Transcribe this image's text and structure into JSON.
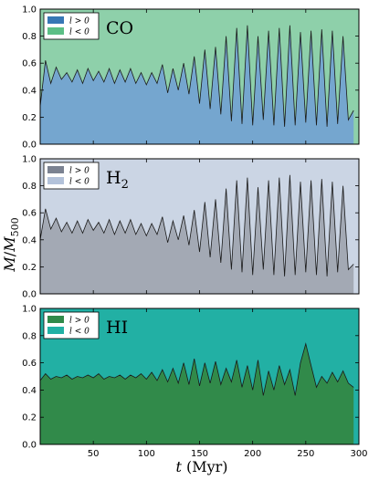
{
  "figure": {
    "xlabel": "t (Myr)",
    "ylabel": "M/M500"
  },
  "chart_data": [
    {
      "type": "area",
      "panel_label": "CO",
      "xlim": [
        0,
        300
      ],
      "ylim": [
        0,
        1.0
      ],
      "xticks": [
        50,
        100,
        150,
        200,
        250,
        300
      ],
      "yticks": [
        0.0,
        0.2,
        0.4,
        0.6,
        0.8,
        1.0
      ],
      "legend": {
        "position": "top-left",
        "entries": [
          "l > 0",
          "l < 0"
        ]
      },
      "colors": {
        "l > 0": "#75a6cf",
        "l < 0": "#8ed0aa",
        "legend_l > 0": "#3777b5",
        "legend_l < 0": "#5cbf86"
      },
      "series": [
        {
          "name": "l > 0",
          "x": [
            0,
            5,
            10,
            15,
            20,
            25,
            30,
            35,
            40,
            45,
            50,
            55,
            60,
            65,
            70,
            75,
            80,
            85,
            90,
            95,
            100,
            105,
            110,
            115,
            120,
            125,
            130,
            135,
            140,
            145,
            150,
            155,
            160,
            165,
            170,
            175,
            180,
            185,
            190,
            195,
            200,
            205,
            210,
            215,
            220,
            225,
            230,
            235,
            240,
            245,
            250,
            255,
            260,
            265,
            270,
            275,
            280,
            285,
            290,
            295
          ],
          "y": [
            0.28,
            0.62,
            0.45,
            0.57,
            0.48,
            0.53,
            0.46,
            0.55,
            0.45,
            0.56,
            0.47,
            0.54,
            0.46,
            0.56,
            0.45,
            0.55,
            0.46,
            0.56,
            0.45,
            0.53,
            0.44,
            0.53,
            0.45,
            0.59,
            0.38,
            0.56,
            0.4,
            0.6,
            0.37,
            0.65,
            0.3,
            0.7,
            0.26,
            0.72,
            0.22,
            0.8,
            0.17,
            0.86,
            0.15,
            0.88,
            0.14,
            0.8,
            0.18,
            0.84,
            0.14,
            0.86,
            0.13,
            0.88,
            0.14,
            0.83,
            0.16,
            0.84,
            0.14,
            0.85,
            0.13,
            0.84,
            0.15,
            0.8,
            0.18,
            0.25
          ]
        }
      ]
    },
    {
      "type": "area",
      "panel_label": "H2",
      "xlim": [
        0,
        300
      ],
      "ylim": [
        0,
        1.0
      ],
      "xticks": [
        50,
        100,
        150,
        200,
        250,
        300
      ],
      "yticks": [
        0.0,
        0.2,
        0.4,
        0.6,
        0.8,
        1.0
      ],
      "legend": {
        "position": "top-left",
        "entries": [
          "l > 0",
          "l < 0"
        ]
      },
      "colors": {
        "l > 0": "#a3a9b4",
        "l < 0": "#cbd5e4",
        "legend_l > 0": "#7b8291",
        "legend_l < 0": "#b3c2da"
      },
      "series": [
        {
          "name": "l > 0",
          "x": [
            0,
            5,
            10,
            15,
            20,
            25,
            30,
            35,
            40,
            45,
            50,
            55,
            60,
            65,
            70,
            75,
            80,
            85,
            90,
            95,
            100,
            105,
            110,
            115,
            120,
            125,
            130,
            135,
            140,
            145,
            150,
            155,
            160,
            165,
            170,
            175,
            180,
            185,
            190,
            195,
            200,
            205,
            210,
            215,
            220,
            225,
            230,
            235,
            240,
            245,
            250,
            255,
            260,
            265,
            270,
            275,
            280,
            285,
            290,
            295
          ],
          "y": [
            0.4,
            0.63,
            0.48,
            0.56,
            0.46,
            0.53,
            0.45,
            0.54,
            0.45,
            0.55,
            0.47,
            0.53,
            0.45,
            0.55,
            0.44,
            0.54,
            0.45,
            0.55,
            0.44,
            0.52,
            0.43,
            0.52,
            0.44,
            0.57,
            0.38,
            0.54,
            0.4,
            0.58,
            0.36,
            0.62,
            0.31,
            0.68,
            0.27,
            0.7,
            0.23,
            0.78,
            0.18,
            0.84,
            0.16,
            0.86,
            0.14,
            0.79,
            0.18,
            0.84,
            0.14,
            0.86,
            0.13,
            0.88,
            0.14,
            0.83,
            0.16,
            0.84,
            0.14,
            0.85,
            0.13,
            0.83,
            0.16,
            0.8,
            0.18,
            0.22
          ]
        }
      ]
    },
    {
      "type": "area",
      "panel_label": "HI",
      "xlim": [
        0,
        300
      ],
      "ylim": [
        0,
        1.0
      ],
      "xticks": [
        50,
        100,
        150,
        200,
        250,
        300
      ],
      "yticks": [
        0.0,
        0.2,
        0.4,
        0.6,
        0.8,
        1.0
      ],
      "legend": {
        "position": "top-left",
        "entries": [
          "l > 0",
          "l < 0"
        ]
      },
      "colors": {
        "l > 0": "#318a4a",
        "l < 0": "#22b0a4",
        "legend_l > 0": "#318a4a",
        "legend_l < 0": "#22b0a4"
      },
      "series": [
        {
          "name": "l > 0",
          "x": [
            0,
            5,
            10,
            15,
            20,
            25,
            30,
            35,
            40,
            45,
            50,
            55,
            60,
            65,
            70,
            75,
            80,
            85,
            90,
            95,
            100,
            105,
            110,
            115,
            120,
            125,
            130,
            135,
            140,
            145,
            150,
            155,
            160,
            165,
            170,
            175,
            180,
            185,
            190,
            195,
            200,
            205,
            210,
            215,
            220,
            225,
            230,
            235,
            240,
            245,
            250,
            255,
            260,
            265,
            270,
            275,
            280,
            285,
            290,
            295
          ],
          "y": [
            0.47,
            0.52,
            0.48,
            0.5,
            0.49,
            0.51,
            0.48,
            0.5,
            0.49,
            0.51,
            0.49,
            0.52,
            0.48,
            0.5,
            0.49,
            0.51,
            0.48,
            0.51,
            0.49,
            0.52,
            0.48,
            0.53,
            0.47,
            0.55,
            0.46,
            0.56,
            0.45,
            0.6,
            0.44,
            0.63,
            0.43,
            0.6,
            0.45,
            0.61,
            0.44,
            0.56,
            0.46,
            0.62,
            0.42,
            0.58,
            0.4,
            0.62,
            0.36,
            0.54,
            0.4,
            0.58,
            0.44,
            0.55,
            0.36,
            0.6,
            0.74,
            0.58,
            0.42,
            0.5,
            0.45,
            0.53,
            0.46,
            0.54,
            0.45,
            0.42
          ]
        }
      ]
    }
  ]
}
